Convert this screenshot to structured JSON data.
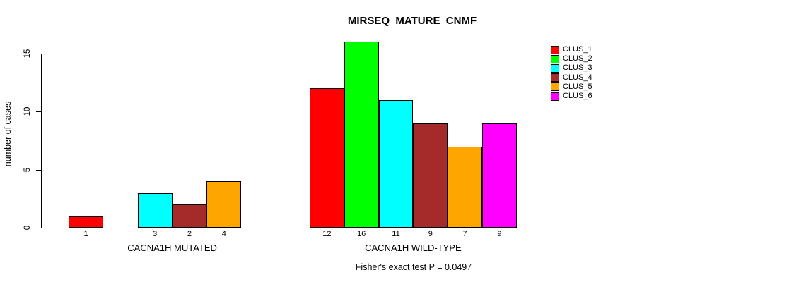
{
  "chart_title": "MIRSEQ_MATURE_CNMF",
  "footer": "Fisher's exact test P = 0.0497",
  "chart_data": {
    "type": "bar",
    "title": "MIRSEQ_MATURE_CNMF",
    "xlabel": "",
    "ylabel": "number of cases",
    "ylim": [
      0,
      16
    ],
    "yticks": [
      0,
      5,
      10,
      15
    ],
    "grid": false,
    "legend_position": "right",
    "bar_borders": "#000000",
    "zero_value_bars": "drawn as flat line, unlabeled",
    "categories": [
      "CACNA1H MUTATED",
      "CACNA1H WILD-TYPE"
    ],
    "series": [
      {
        "name": "CLUS_1",
        "color": "#FF0000",
        "values": [
          1,
          12
        ]
      },
      {
        "name": "CLUS_2",
        "color": "#00FF00",
        "values": [
          0,
          16
        ]
      },
      {
        "name": "CLUS_3",
        "color": "#00FFFF",
        "values": [
          3,
          11
        ]
      },
      {
        "name": "CLUS_4",
        "color": "#A52A2A",
        "values": [
          2,
          9
        ]
      },
      {
        "name": "CLUS_5",
        "color": "#FFA500",
        "values": [
          4,
          7
        ]
      },
      {
        "name": "CLUS_6",
        "color": "#FF00FF",
        "values": [
          0,
          9
        ]
      }
    ],
    "annotation": "Fisher's exact test P = 0.0497"
  }
}
